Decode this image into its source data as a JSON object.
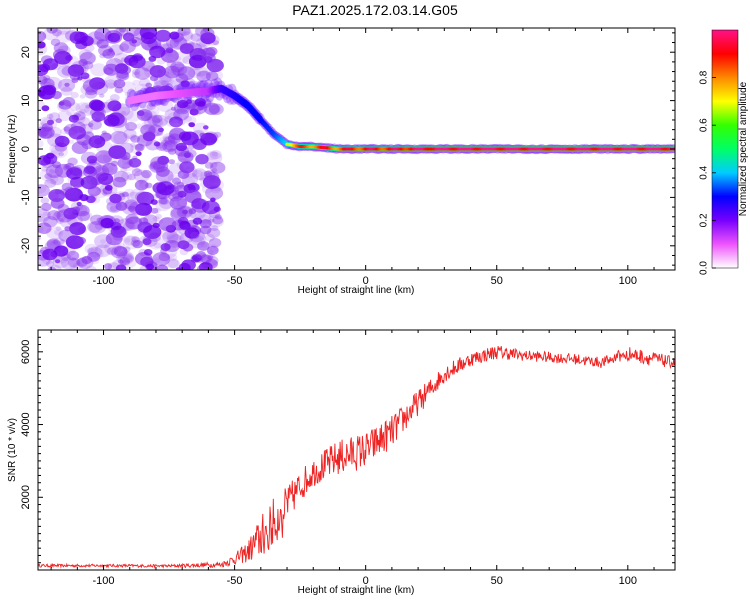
{
  "title": "PAZ1.2025.172.03.14.G05",
  "colors": {
    "snr_line": "#ee2222",
    "background_noise": "#8833ee",
    "colormap": [
      "#ffffff",
      "#ee55ff",
      "#7700ff",
      "#0000ff",
      "#00ccff",
      "#00ff66",
      "#33ff00",
      "#ffff00",
      "#ff8800",
      "#ff0000",
      "#ff1188"
    ]
  },
  "chart_data": [
    {
      "type": "heatmap",
      "xlabel": "Height of straight line (km)",
      "ylabel": "Frequency (Hz)",
      "xlim": [
        -125,
        118
      ],
      "ylim": [
        -25,
        25
      ],
      "x_ticks": [
        "-100",
        "-50",
        "0",
        "50",
        "100"
      ],
      "y_ticks": [
        "-20",
        "-10",
        "0",
        "10",
        "20"
      ],
      "colorbar": {
        "label": "Normalized spectral amplitude",
        "range": [
          0,
          1
        ],
        "ticks": [
          "0.0",
          "0.2",
          "0.4",
          "0.6",
          "0.8"
        ]
      },
      "ridge": {
        "x": [
          -90,
          -80,
          -70,
          -60,
          -55,
          -50,
          -45,
          -40,
          -35,
          -30,
          -25,
          -20,
          -10,
          0,
          10,
          20,
          30,
          50,
          70,
          90,
          110,
          118
        ],
        "frequency": [
          10,
          11,
          11.5,
          12,
          12.5,
          11,
          9,
          6,
          3,
          1,
          0.5,
          0.5,
          0,
          0,
          0,
          0,
          0,
          0,
          0,
          0,
          0,
          0
        ],
        "amplitude": [
          0.15,
          0.15,
          0.2,
          0.25,
          0.45,
          0.5,
          0.55,
          0.55,
          0.6,
          0.75,
          0.8,
          0.85,
          0.85,
          0.9,
          0.9,
          0.95,
          1.0,
          1.0,
          1.0,
          1.0,
          1.0,
          1.0
        ]
      },
      "noise_region_x": [
        -125,
        -56
      ]
    },
    {
      "type": "line",
      "xlabel": "Height of straight line (km)",
      "ylabel": "SNR (10 * v/v)",
      "xlim": [
        -125,
        118
      ],
      "ylim": [
        0,
        6600
      ],
      "x_ticks": [
        "-100",
        "-50",
        "0",
        "50",
        "100"
      ],
      "y_ticks": [
        "2000",
        "4000",
        "6000"
      ],
      "series": [
        {
          "x": [
            -125,
            -100,
            -75,
            -55,
            -50,
            -45,
            -40,
            -35,
            -30,
            -25,
            -20,
            -10,
            0,
            10,
            20,
            30,
            40,
            50,
            60,
            70,
            80,
            90,
            100,
            110,
            118
          ],
          "y": [
            120,
            120,
            110,
            150,
            300,
            500,
            900,
            1300,
            1800,
            2300,
            2700,
            3100,
            3300,
            3800,
            4600,
            5400,
            5800,
            6000,
            5900,
            5850,
            5800,
            5700,
            5950,
            5800,
            5700
          ],
          "noise_amplitude": [
            40,
            40,
            40,
            80,
            150,
            300,
            600,
            700,
            500,
            450,
            400,
            500,
            500,
            450,
            350,
            250,
            200,
            200,
            150,
            150,
            150,
            150,
            200,
            200,
            150
          ]
        }
      ]
    }
  ]
}
